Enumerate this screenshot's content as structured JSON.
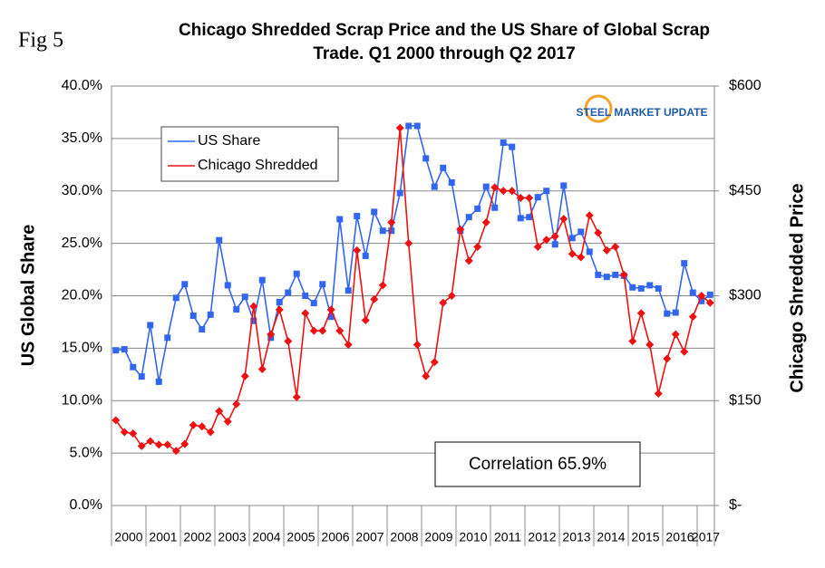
{
  "figure_label": "Fig 5",
  "logo": "STEEL MARKET UPDATE",
  "chart_data": {
    "type": "line",
    "title": [
      "Chicago Shredded Scrap Price and the US Share of Global Scrap",
      "Trade. Q1 2000 through Q2 2017"
    ],
    "y_label": "US Global Share",
    "y2_label": "Chicago Shredded Price",
    "annotation": "Correlation 65.9%",
    "legend": "upper left",
    "grid": true,
    "categories": [
      "2000",
      null,
      null,
      null,
      "2001",
      null,
      null,
      null,
      "2002",
      null,
      null,
      null,
      "2003",
      null,
      null,
      null,
      "2004",
      null,
      null,
      null,
      "2005",
      null,
      null,
      null,
      "2006",
      null,
      null,
      null,
      "2007",
      null,
      null,
      null,
      "2008",
      null,
      null,
      null,
      "2009",
      null,
      null,
      null,
      "2010",
      null,
      null,
      null,
      "2011",
      null,
      null,
      null,
      "2012",
      null,
      null,
      null,
      "2013",
      null,
      null,
      null,
      "2014",
      null,
      null,
      null,
      "2015",
      null,
      null,
      null,
      "2016",
      null,
      null,
      null,
      "2017",
      null
    ],
    "ylim": [
      0,
      40
    ],
    "yticks": [
      {
        "value": 0,
        "label": "0.0%"
      },
      {
        "value": 5,
        "label": "5.0%"
      },
      {
        "value": 10,
        "label": "10.0%"
      },
      {
        "value": 15,
        "label": "15.0%"
      },
      {
        "value": 20,
        "label": "20.0%"
      },
      {
        "value": 25,
        "label": "25.0%"
      },
      {
        "value": 30,
        "label": "30.0%"
      },
      {
        "value": 35,
        "label": "35.0%"
      },
      {
        "value": 40,
        "label": "40.0%"
      }
    ],
    "y2lim": [
      0,
      600
    ],
    "y2ticks": [
      {
        "value": 0,
        "label": "$-"
      },
      {
        "value": 150,
        "label": "$150"
      },
      {
        "value": 300,
        "label": "$300"
      },
      {
        "value": 450,
        "label": "$450"
      },
      {
        "value": 600,
        "label": "$600"
      }
    ],
    "series": [
      {
        "name": "US  Share",
        "color": "#3366ee",
        "marker": "square",
        "values": [
          14.8,
          14.9,
          13.2,
          12.3,
          17.2,
          11.8,
          16.0,
          19.8,
          21.1,
          18.1,
          16.8,
          18.2,
          25.3,
          21.0,
          18.7,
          19.9,
          17.6,
          21.5,
          16.0,
          19.4,
          20.3,
          22.1,
          20.0,
          19.3,
          21.1,
          18.0,
          27.3,
          20.5,
          27.6,
          23.8,
          28.0,
          26.2,
          26.2,
          29.8,
          36.2,
          36.2,
          33.1,
          30.4,
          32.2,
          30.8,
          26.2,
          27.5,
          28.3,
          30.4,
          28.4,
          34.6,
          34.2,
          27.4,
          27.5,
          29.4,
          30.0,
          24.9,
          30.5,
          25.5,
          26.1,
          24.2,
          22.0,
          21.8,
          22.0,
          21.9,
          20.8,
          20.7,
          21.0,
          20.7,
          18.3,
          18.4,
          23.1,
          20.3,
          19.5,
          20.1
        ]
      },
      {
        "name": "Chicago Shredded",
        "color": "#ee1111",
        "marker": "diamond",
        "axis": "y2",
        "values": [
          122,
          105,
          103,
          85,
          92,
          87,
          87,
          78,
          88,
          115,
          113,
          105,
          135,
          120,
          145,
          185,
          285,
          195,
          245,
          280,
          235,
          155,
          275,
          250,
          250,
          280,
          250,
          230,
          365,
          265,
          295,
          315,
          405,
          540,
          375,
          230,
          185,
          205,
          290,
          300,
          395,
          350,
          370,
          405,
          455,
          450,
          450,
          440,
          440,
          370,
          380,
          385,
          410,
          360,
          355,
          415,
          390,
          365,
          370,
          330,
          235,
          275,
          230,
          160,
          210,
          245,
          220,
          270,
          300,
          290
        ]
      }
    ]
  }
}
